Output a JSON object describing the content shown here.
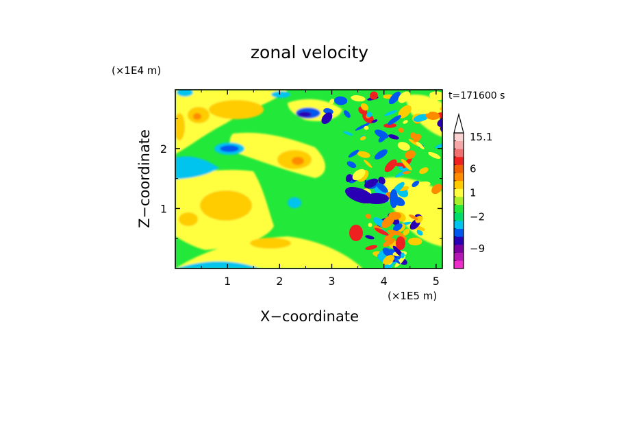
{
  "chart_data": {
    "type": "heatmap",
    "title": "zonal velocity",
    "xlabel": "X−coordinate",
    "ylabel": "Z−coordinate",
    "x_unit": "(×1E5 m)",
    "y_unit": "(×1E4 m)",
    "time_label": "t=171600 s",
    "xlim": [
      0,
      5.12
    ],
    "ylim": [
      0,
      2.98
    ],
    "x_ticks": [
      {
        "value": 1,
        "label": "1"
      },
      {
        "value": 2,
        "label": "2"
      },
      {
        "value": 3,
        "label": "3"
      },
      {
        "value": 4,
        "label": "4"
      },
      {
        "value": 5,
        "label": "5"
      }
    ],
    "y_ticks": [
      {
        "value": 1,
        "label": "1"
      },
      {
        "value": 2,
        "label": "2"
      }
    ],
    "colorbar": {
      "levels": [
        {
          "color": "#ee2cc8"
        },
        {
          "color": "#b418b4"
        },
        {
          "color": "#7c00a0"
        },
        {
          "color": "#2a00b4"
        },
        {
          "color": "#0058ee"
        },
        {
          "color": "#00c4ee"
        },
        {
          "color": "#00dc6c"
        },
        {
          "color": "#22e83a"
        },
        {
          "color": "#a8ee28"
        },
        {
          "color": "#ffff40"
        },
        {
          "color": "#ffcc00"
        },
        {
          "color": "#ff8c00"
        },
        {
          "color": "#f06000"
        },
        {
          "color": "#ee2020"
        },
        {
          "color": "#f07070"
        },
        {
          "color": "#f4a8a8"
        },
        {
          "color": "#fad2d2"
        }
      ],
      "labels": [
        {
          "level_index": 16,
          "text": "15.1"
        },
        {
          "level_index": 12,
          "text": "6"
        },
        {
          "level_index": 9,
          "text": "1"
        },
        {
          "level_index": 6,
          "text": "−2"
        },
        {
          "level_index": 2,
          "text": "−9"
        }
      ],
      "arrow_top": true
    }
  }
}
